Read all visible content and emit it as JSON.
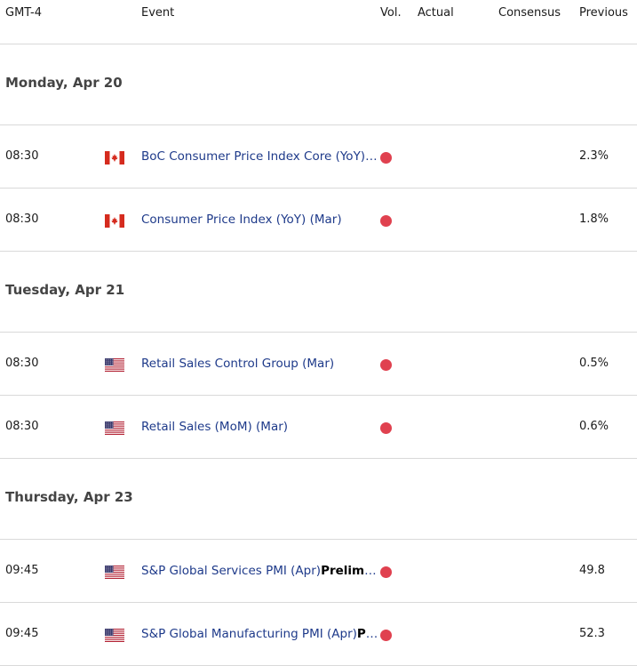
{
  "header": {
    "tz": "GMT-4",
    "event": "Event",
    "vol": "Vol.",
    "actual": "Actual",
    "consensus": "Consensus",
    "previous": "Previous"
  },
  "colors": {
    "volatility_high": "#e0414f",
    "event_text": "#1e3a8a"
  },
  "days": [
    {
      "label": "Monday, Apr 20",
      "events": [
        {
          "time": "08:30",
          "flag": "canada-flag-icon",
          "name": "BoC Consumer Price Index Core (YoY) (Mar)",
          "name_bold": "",
          "volatility": "high",
          "actual": "",
          "consensus": "",
          "previous": "2.3%"
        },
        {
          "time": "08:30",
          "flag": "canada-flag-icon",
          "name": "Consumer Price Index (YoY) (Mar)",
          "name_bold": "",
          "volatility": "high",
          "actual": "",
          "consensus": "",
          "previous": "1.8%"
        }
      ]
    },
    {
      "label": "Tuesday, Apr 21",
      "events": [
        {
          "time": "08:30",
          "flag": "usa-flag-icon",
          "name": "Retail Sales Control Group (Mar)",
          "name_bold": "",
          "volatility": "high",
          "actual": "",
          "consensus": "",
          "previous": "0.5%"
        },
        {
          "time": "08:30",
          "flag": "usa-flag-icon",
          "name": "Retail Sales (MoM) (Mar)",
          "name_bold": "",
          "volatility": "high",
          "actual": "",
          "consensus": "",
          "previous": "0.6%"
        }
      ]
    },
    {
      "label": "Thursday, Apr 23",
      "events": [
        {
          "time": "09:45",
          "flag": "usa-flag-icon",
          "name": "S&P Global Services PMI (Apr)",
          "name_bold": "Preliminary",
          "volatility": "high",
          "actual": "",
          "consensus": "",
          "previous": "49.8"
        },
        {
          "time": "09:45",
          "flag": "usa-flag-icon",
          "name": "S&P Global Manufacturing PMI (Apr)",
          "name_bold": "Preliminary",
          "volatility": "high",
          "actual": "",
          "consensus": "",
          "previous": "52.3"
        }
      ]
    }
  ]
}
